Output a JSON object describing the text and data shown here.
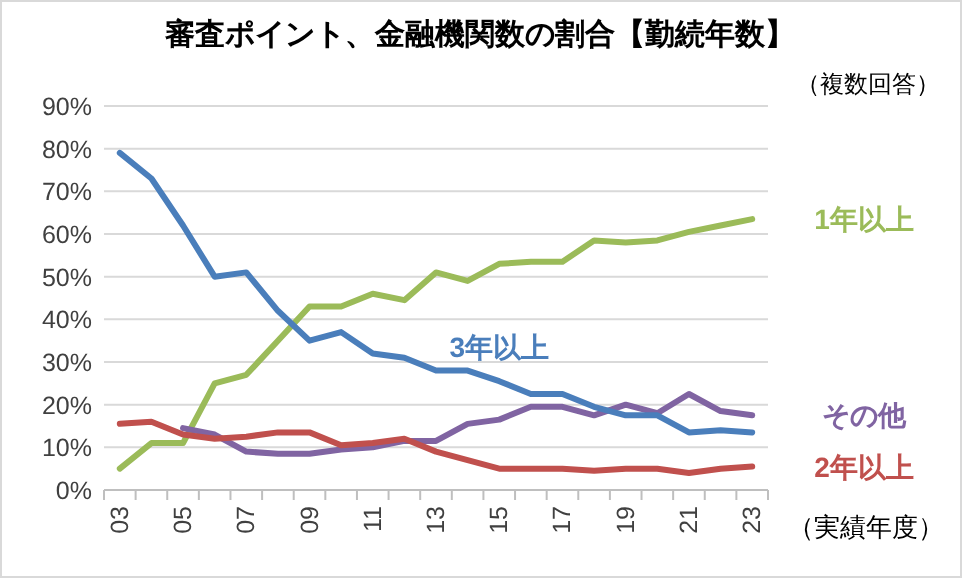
{
  "chart_data": {
    "type": "line",
    "title": "審査ポイント、金融機関数の割合【勤続年数】",
    "xlabel": "（実績年度）",
    "annotations": [
      "（複数回答）"
    ],
    "categories": [
      "03",
      null,
      "05",
      null,
      "07",
      null,
      "09",
      null,
      "11",
      null,
      "13",
      null,
      "15",
      null,
      "17",
      null,
      "19",
      null,
      "21",
      null,
      "23"
    ],
    "series": [
      {
        "name": "1年以上",
        "color": "#9bbb59",
        "values": [
          5,
          11,
          11,
          25,
          27,
          35,
          43,
          43,
          46,
          44.5,
          51,
          49,
          53,
          53.5,
          53.5,
          58.5,
          58,
          58.5,
          60.5,
          62,
          63.5
        ]
      },
      {
        "name": "その他",
        "color": "#8064a2",
        "values": [
          null,
          null,
          14.5,
          13,
          9,
          8.5,
          8.5,
          9.5,
          10,
          11.5,
          11.5,
          15.5,
          16.5,
          19.5,
          19.5,
          17.5,
          20,
          18,
          22.5,
          18.5,
          17.5
        ]
      },
      {
        "name": "2年以上",
        "color": "#c0504d",
        "values": [
          15.5,
          16,
          13,
          12,
          12.5,
          13.5,
          13.5,
          10.5,
          11,
          12,
          9,
          7,
          5,
          5,
          5,
          4.5,
          5,
          5,
          4,
          5,
          5.5
        ]
      },
      {
        "name": "3年以上",
        "color": "#4a7ebb",
        "values": [
          79,
          73,
          62,
          50,
          51,
          42,
          35,
          37,
          32,
          31,
          28,
          28,
          25.5,
          22.5,
          22.5,
          19.5,
          17.5,
          17.5,
          13.5,
          14,
          13.5
        ]
      }
    ],
    "ylim": [
      0,
      90
    ],
    "yticks": [
      {
        "value": 0,
        "label": "0%"
      },
      {
        "value": 10,
        "label": "10%"
      },
      {
        "value": 20,
        "label": "20%"
      },
      {
        "value": 30,
        "label": "30%"
      },
      {
        "value": 40,
        "label": "40%"
      },
      {
        "value": 50,
        "label": "50%"
      },
      {
        "value": 60,
        "label": "60%"
      },
      {
        "value": 70,
        "label": "70%"
      },
      {
        "value": 80,
        "label": "80%"
      },
      {
        "value": 90,
        "label": "90%"
      }
    ],
    "grid": "y",
    "marker": "none",
    "line_style": "solid"
  }
}
